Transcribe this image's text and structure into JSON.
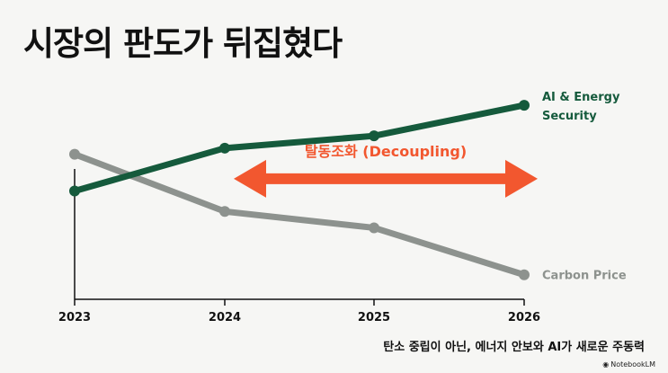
{
  "title": "시장의 판도가 뒤집혔다",
  "caption": "탄소 중립이 아닌, 에너지 안보와 AI가 새로운 주동력",
  "brand": {
    "name": "NotebookLM",
    "icon": "notebooklm-logo-icon"
  },
  "colors": {
    "ai": "#155a3c",
    "carbon": "#8d928e",
    "arrow": "#f2572f",
    "axis": "#111111",
    "background": "#f6f6f4"
  },
  "chart_data": {
    "type": "line",
    "x": [
      "2023",
      "2024",
      "2025",
      "2026"
    ],
    "series": [
      {
        "name": "AI & Energy Security",
        "label_lines": [
          "AI & Energy",
          "Security"
        ],
        "values": [
          53,
          74,
          80,
          95
        ]
      },
      {
        "name": "Carbon Price",
        "label_lines": [
          "Carbon Price"
        ],
        "values": [
          71,
          43,
          35,
          12
        ]
      }
    ],
    "ylim": [
      0,
      110
    ],
    "grid": false,
    "annotation": {
      "text": "탈동조화 (Decoupling)",
      "from": "2024",
      "to": "2026",
      "y": 59
    }
  }
}
